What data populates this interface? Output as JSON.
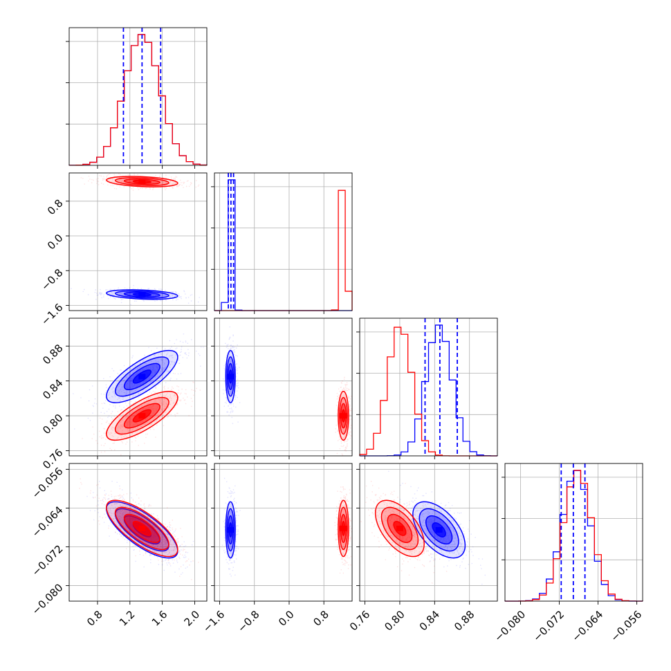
{
  "chart_data": {
    "type": "corner",
    "grid": true,
    "colors": {
      "series_a": "#0000ff",
      "series_b": "#ff0000",
      "quantile_lines": "#0000ff"
    },
    "params": [
      {
        "range": [
          0.45,
          2.15
        ],
        "ticks": [
          0.8,
          1.2,
          1.6,
          2.0
        ],
        "tick_labels": [
          "0.8",
          "1.2",
          "1.6",
          "2.0"
        ]
      },
      {
        "range": [
          -1.72,
          1.45
        ],
        "ticks": [
          -1.6,
          -0.8,
          0.0,
          0.8
        ],
        "tick_labels": [
          "−1.6",
          "−0.8",
          "0.0",
          "0.8"
        ]
      },
      {
        "range": [
          0.754,
          0.912
        ],
        "ticks": [
          0.76,
          0.8,
          0.84,
          0.88
        ],
        "tick_labels": [
          "0.76",
          "0.80",
          "0.84",
          "0.88"
        ]
      },
      {
        "range": [
          -0.0832,
          -0.0548
        ],
        "ticks": [
          -0.08,
          -0.072,
          -0.064,
          -0.056
        ],
        "tick_labels": [
          "−0.080",
          "−0.072",
          "−0.064",
          "−0.056"
        ]
      }
    ],
    "series": [
      {
        "color": "#0000ff",
        "mean": [
          1.35,
          -1.35,
          0.845,
          -0.0685
        ],
        "sd": [
          0.22,
          0.055,
          0.015,
          0.0029
        ],
        "quantiles": [
          [
            1.12,
            1.35,
            1.58
          ],
          [
            -1.4,
            -1.34,
            -1.28
          ],
          [
            0.829,
            0.846,
            0.866
          ],
          [
            -0.0716,
            -0.0691,
            -0.0667
          ]
        ]
      },
      {
        "color": "#ff0000",
        "mean": [
          1.35,
          1.25,
          0.8,
          -0.0682
        ],
        "sd": [
          0.22,
          0.06,
          0.014,
          0.0029
        ]
      }
    ],
    "correlations": [
      {
        "pair": [
          0,
          1
        ],
        "r_a": -0.3,
        "r_b": -0.3
      },
      {
        "pair": [
          0,
          2
        ],
        "r_a": 0.75,
        "r_b": 0.75
      },
      {
        "pair": [
          0,
          3
        ],
        "r_a": -0.75,
        "r_b": -0.75
      },
      {
        "pair": [
          1,
          2
        ],
        "r_a": 0.0,
        "r_b": 0.0
      },
      {
        "pair": [
          1,
          3
        ],
        "r_a": 0.0,
        "r_b": 0.0
      },
      {
        "pair": [
          2,
          3
        ],
        "r_a": -0.55,
        "r_b": -0.55
      }
    ],
    "contour_levels_sigma": [
      0.5,
      1.0,
      1.5,
      2.0
    ]
  }
}
